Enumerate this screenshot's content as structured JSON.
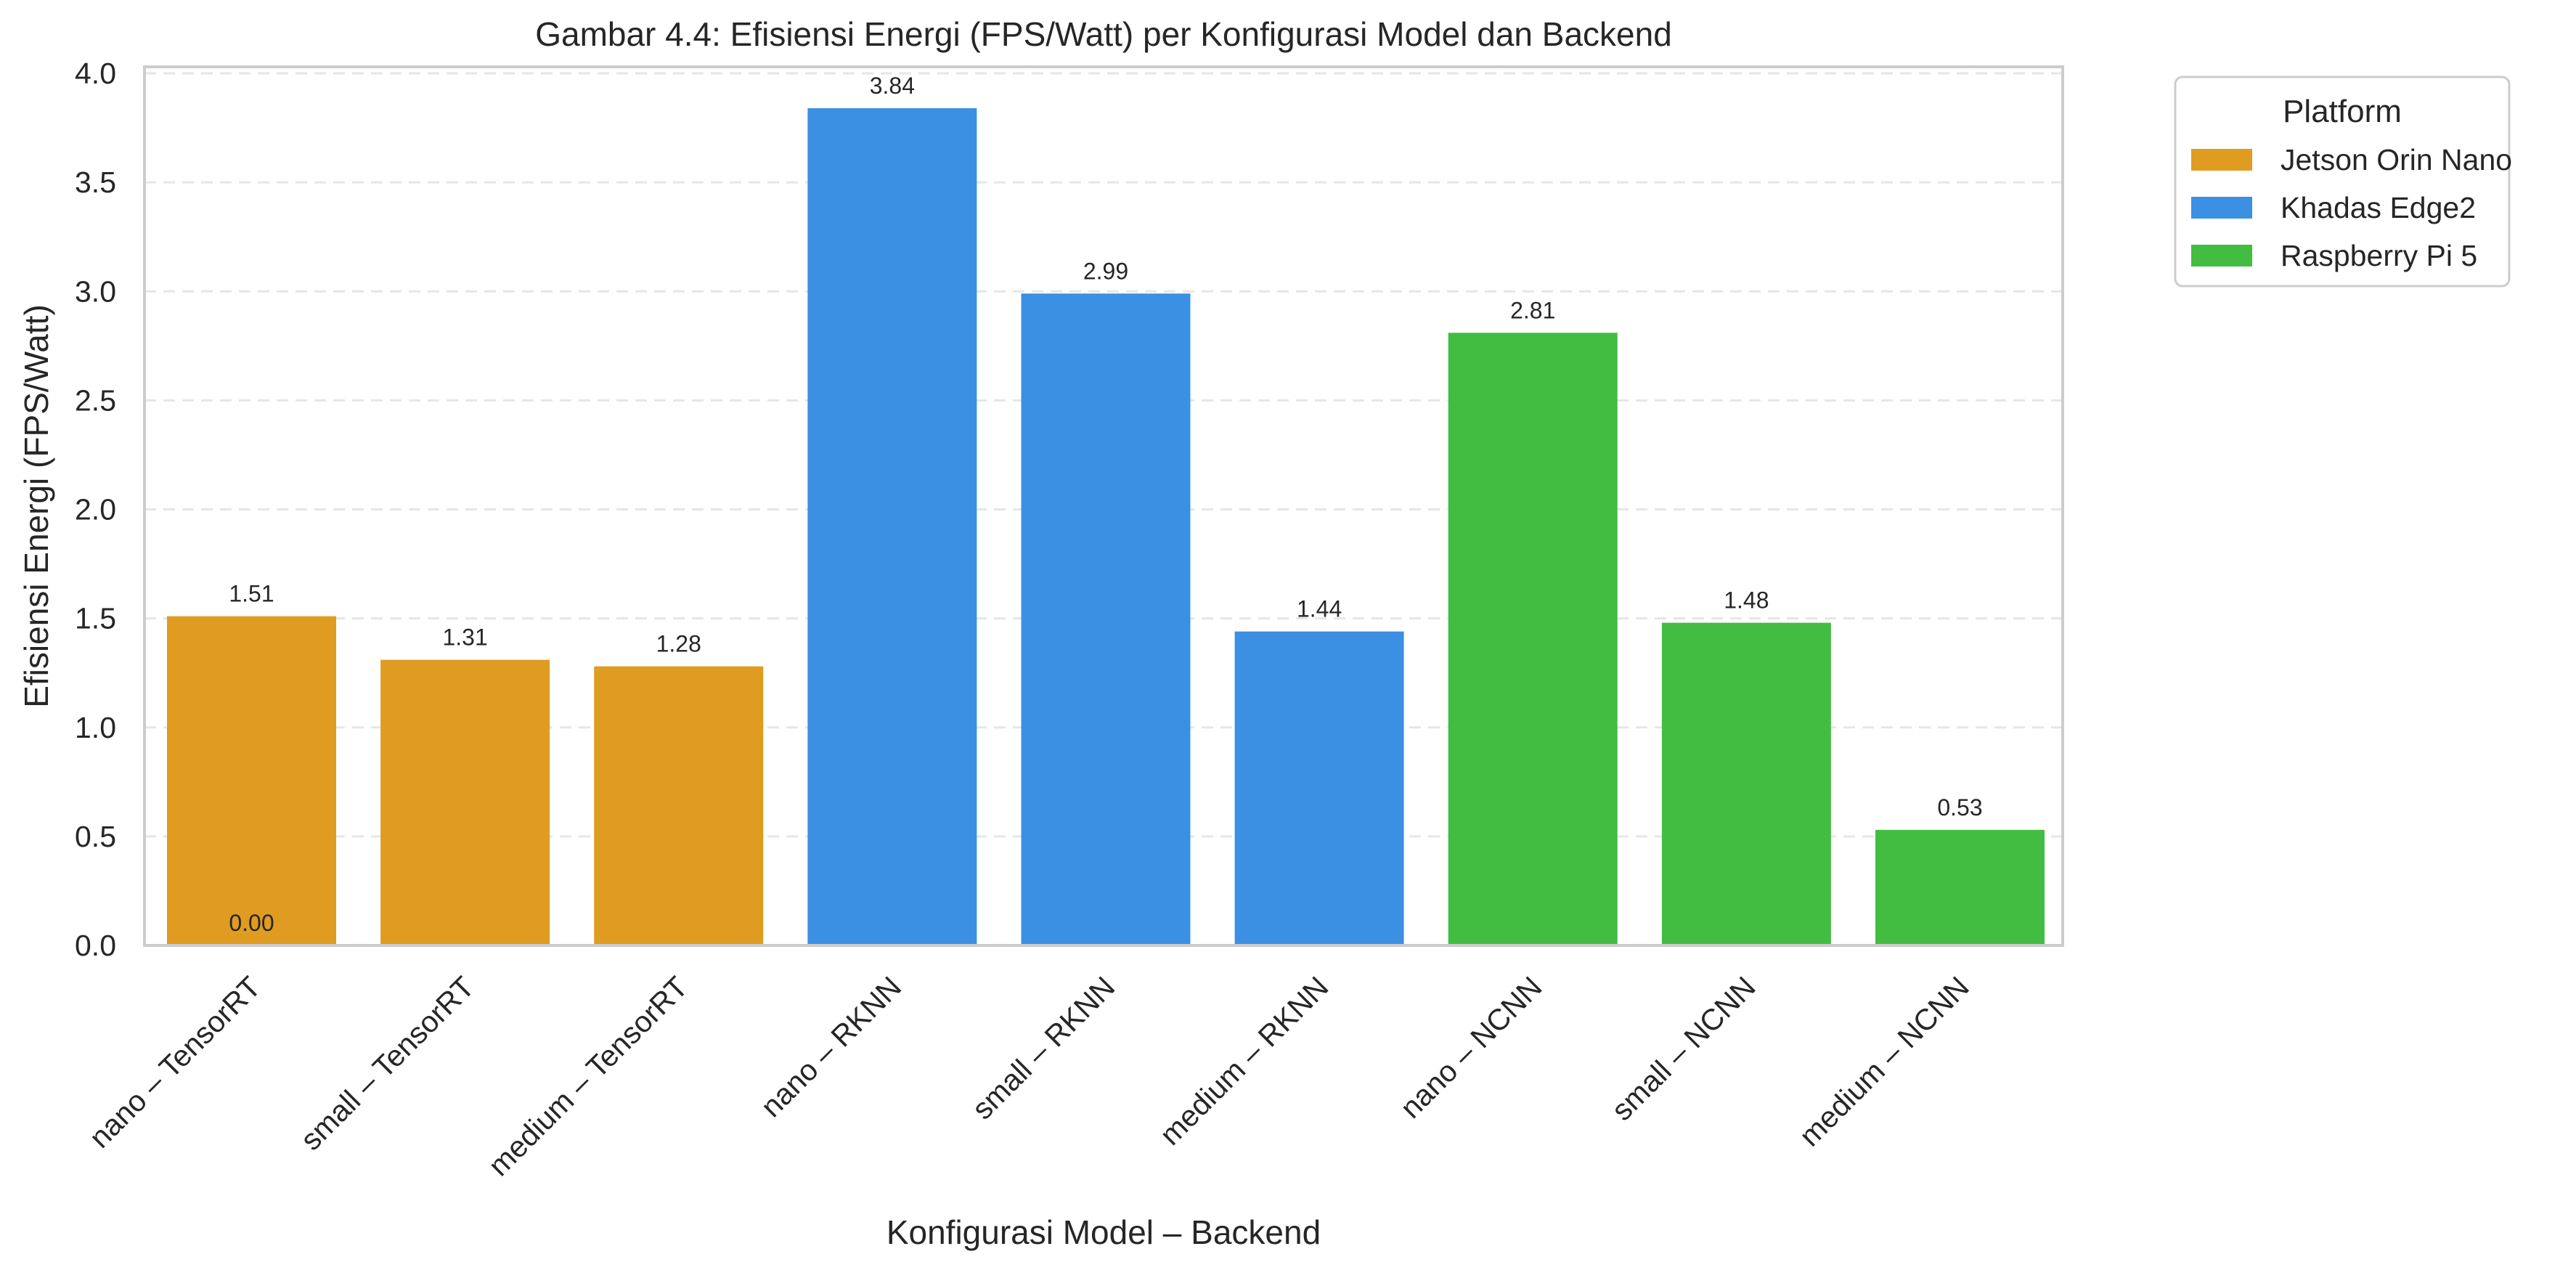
{
  "chart_data": {
    "type": "bar",
    "title": "Gambar 4.4: Efisiensi Energi (FPS/Watt) per Konfigurasi Model dan Backend",
    "xlabel": "Konfigurasi Model – Backend",
    "ylabel": "Efisiensi Energi (FPS/Watt)",
    "ylim": [
      0,
      4.0
    ],
    "yticks": [
      "0.0",
      "0.5",
      "1.0",
      "1.5",
      "2.0",
      "2.5",
      "3.0",
      "3.5",
      "4.0"
    ],
    "grid": "horizontal dashed",
    "categories": [
      "nano – TensorRT",
      "small – TensorRT",
      "medium – TensorRT",
      "nano – RKNN",
      "small – RKNN",
      "medium – RKNN",
      "nano – NCNN",
      "small – NCNN",
      "medium – NCNN"
    ],
    "values": [
      1.51,
      1.31,
      1.28,
      3.84,
      2.99,
      1.44,
      2.81,
      1.48,
      0.53
    ],
    "value_labels": [
      "1.51",
      "1.31",
      "1.28",
      "3.84",
      "2.99",
      "1.44",
      "2.81",
      "1.48",
      "0.53"
    ],
    "platforms": [
      "Jetson Orin Nano",
      "Jetson Orin Nano",
      "Jetson Orin Nano",
      "Khadas Edge2",
      "Khadas Edge2",
      "Khadas Edge2",
      "Raspberry Pi 5",
      "Raspberry Pi 5",
      "Raspberry Pi 5"
    ],
    "extra_annotation": {
      "category": "nano – TensorRT",
      "value": 0.0,
      "text": "0.00"
    },
    "legend": {
      "title": "Platform",
      "placement": "outside-right-top",
      "entries": [
        {
          "name": "Jetson Orin Nano",
          "color": "#e09c21"
        },
        {
          "name": "Khadas Edge2",
          "color": "#3b90e4"
        },
        {
          "name": "Raspberry Pi 5",
          "color": "#42bd41"
        }
      ]
    }
  }
}
